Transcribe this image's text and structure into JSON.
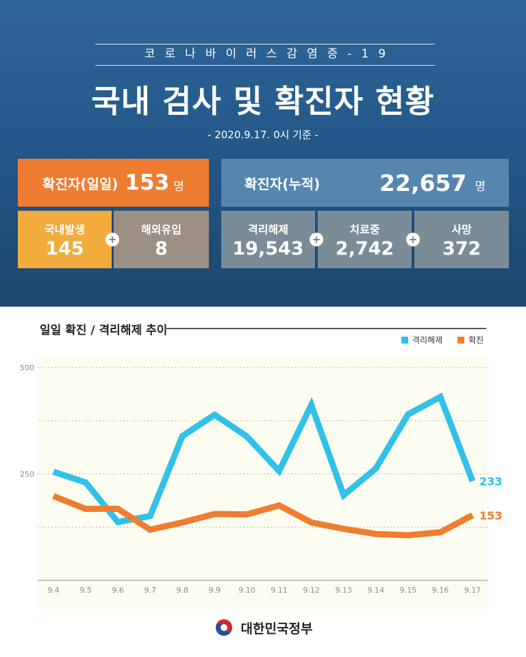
{
  "header": {
    "kicker": "코로나바이러스감염증-19",
    "title": "국내 검사 및 확진자 현황",
    "date": "- 2020.9.17. 0시 기준 -"
  },
  "stats": {
    "daily": {
      "label": "확진자(일일)",
      "value": "153",
      "unit": "명"
    },
    "cumulative": {
      "label": "확진자(누적)",
      "value": "22,657",
      "unit": "명"
    },
    "domestic": {
      "label": "국내발생",
      "value": "145"
    },
    "overseas": {
      "label": "해외유입",
      "value": "8"
    },
    "released": {
      "label": "격리해제",
      "value": "19,543"
    },
    "treatment": {
      "label": "치료중",
      "value": "2,742"
    },
    "deaths": {
      "label": "사망",
      "value": "372"
    },
    "plus_symbol": "+"
  },
  "colors": {
    "released": "#2fc1ea",
    "confirmed": "#ee7d31"
  },
  "chart_data": {
    "type": "line",
    "title": "일일 확진 / 격리해제 추이",
    "x": [
      "9.4",
      "9.5",
      "9.6",
      "9.7",
      "9.8",
      "9.9",
      "9.10",
      "9.11",
      "9.12",
      "9.13",
      "9.14",
      "9.15",
      "9.16",
      "9.17"
    ],
    "series": [
      {
        "name": "격리해제",
        "values": [
          255,
          230,
          137,
          151,
          339,
          389,
          338,
          257,
          412,
          200,
          263,
          390,
          431,
          233
        ]
      },
      {
        "name": "확진",
        "values": [
          198,
          168,
          168,
          119,
          136,
          156,
          155,
          176,
          136,
          121,
          109,
          106,
          113,
          153
        ]
      }
    ],
    "yticks": [
      250,
      500
    ],
    "ylim": [
      0,
      500
    ],
    "grid": true,
    "legend": "top-right",
    "end_labels": [
      "233",
      "153"
    ]
  },
  "footer": {
    "org": "대한민국정부",
    "logo": "taegeuk-emblem-icon"
  }
}
